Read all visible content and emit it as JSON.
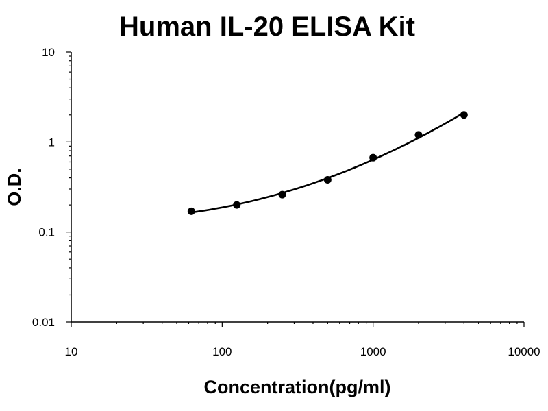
{
  "chart_data": {
    "type": "scatter",
    "title": "Human IL-20 ELISA Kit",
    "xlabel": "Concentration(pg/ml)",
    "ylabel": "O.D.",
    "x_scale": "log",
    "y_scale": "log",
    "xlim": [
      10,
      10000
    ],
    "ylim": [
      0.01,
      10
    ],
    "x_ticks": [
      "10",
      "100",
      "1000",
      "10000"
    ],
    "y_ticks": [
      "0.01",
      "0.1",
      "1",
      "10"
    ],
    "grid": false,
    "legend": "none",
    "series": [
      {
        "x": [
          62.5,
          125,
          250,
          500,
          1000,
          2000,
          4000
        ],
        "y": [
          0.17,
          0.2,
          0.26,
          0.38,
          0.67,
          1.2,
          2.0
        ],
        "fit": "curve"
      }
    ]
  }
}
